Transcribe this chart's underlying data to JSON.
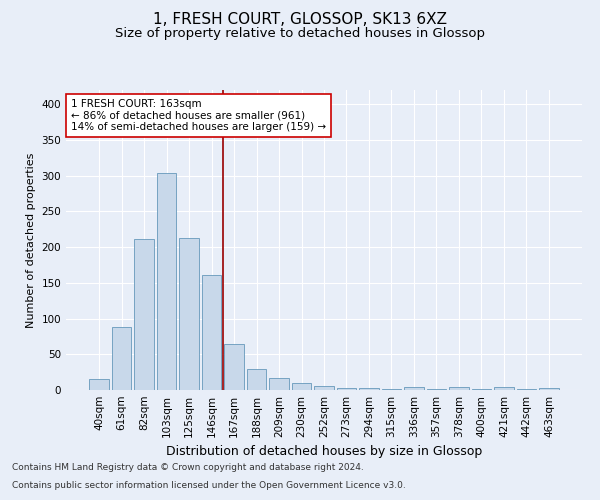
{
  "title": "1, FRESH COURT, GLOSSOP, SK13 6XZ",
  "subtitle": "Size of property relative to detached houses in Glossop",
  "xlabel": "Distribution of detached houses by size in Glossop",
  "ylabel": "Number of detached properties",
  "categories": [
    "40sqm",
    "61sqm",
    "82sqm",
    "103sqm",
    "125sqm",
    "146sqm",
    "167sqm",
    "188sqm",
    "209sqm",
    "230sqm",
    "252sqm",
    "273sqm",
    "294sqm",
    "315sqm",
    "336sqm",
    "357sqm",
    "378sqm",
    "400sqm",
    "421sqm",
    "442sqm",
    "463sqm"
  ],
  "values": [
    15,
    88,
    211,
    304,
    213,
    161,
    65,
    30,
    17,
    10,
    6,
    3,
    3,
    1,
    4,
    1,
    4,
    1,
    4,
    1,
    3
  ],
  "bar_color": "#c8d8ea",
  "bar_edge_color": "#6699bb",
  "vline_color": "#990000",
  "annotation_text": "1 FRESH COURT: 163sqm\n← 86% of detached houses are smaller (961)\n14% of semi-detached houses are larger (159) →",
  "annotation_box_facecolor": "#ffffff",
  "annotation_box_edgecolor": "#cc0000",
  "ylim": [
    0,
    420
  ],
  "yticks": [
    0,
    50,
    100,
    150,
    200,
    250,
    300,
    350,
    400
  ],
  "bg_color": "#e8eef8",
  "plot_bg_color": "#e8eef8",
  "footer_line1": "Contains HM Land Registry data © Crown copyright and database right 2024.",
  "footer_line2": "Contains public sector information licensed under the Open Government Licence v3.0.",
  "title_fontsize": 11,
  "subtitle_fontsize": 9.5,
  "xlabel_fontsize": 9,
  "ylabel_fontsize": 8,
  "tick_fontsize": 7.5,
  "annotation_fontsize": 7.5,
  "footer_fontsize": 6.5,
  "vline_x_index": 5.5
}
